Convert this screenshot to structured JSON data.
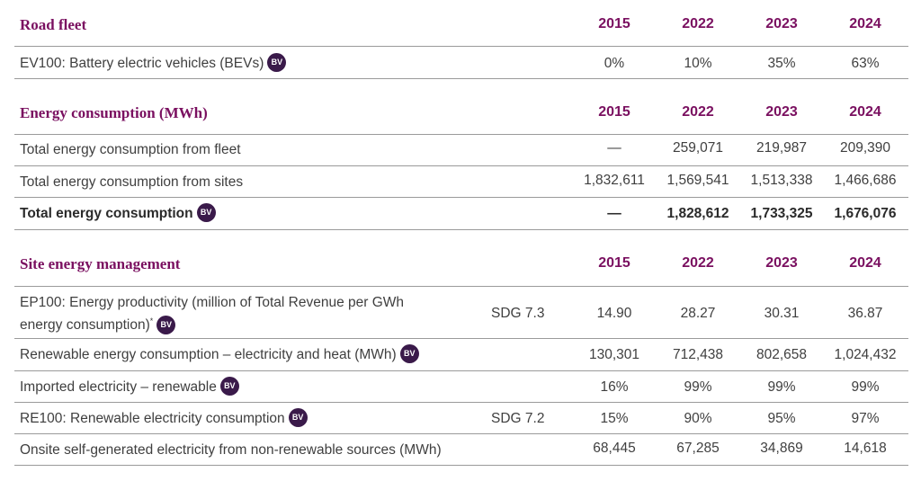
{
  "years": [
    "2015",
    "2022",
    "2023",
    "2024"
  ],
  "road_fleet": {
    "title": "Road fleet",
    "rows": [
      {
        "label": "EV100: Battery electric vehicles (BEVs)",
        "bv": "BV",
        "values": [
          "0%",
          "10%",
          "35%",
          "63%"
        ]
      }
    ]
  },
  "energy": {
    "title": "Energy consumption (MWh)",
    "rows": [
      {
        "label": "Total energy consumption from fleet",
        "values": [
          "—",
          "259,071",
          "219,987",
          "209,390"
        ]
      },
      {
        "label": "Total energy consumption from sites",
        "values": [
          "1,832,611",
          "1,569,541",
          "1,513,338",
          "1,466,686"
        ]
      },
      {
        "label": "Total energy consumption",
        "bv": "BV",
        "values": [
          "—",
          "1,828,612",
          "1,733,325",
          "1,676,076"
        ]
      }
    ]
  },
  "site": {
    "title": "Site energy management",
    "rows": [
      {
        "label_line1": "EP100: Energy productivity (million of Total Revenue per GWh",
        "label_line2": "energy consumption)",
        "sup": "*",
        "bv": "BV",
        "sdg": "SDG 7.3",
        "values": [
          "14.90",
          "28.27",
          "30.31",
          "36.87"
        ]
      },
      {
        "label": "Renewable energy consumption – electricity and heat (MWh)",
        "bv": "BV",
        "values": [
          "130,301",
          "712,438",
          "802,658",
          "1,024,432"
        ]
      },
      {
        "label": "Imported electricity – renewable",
        "bv": "BV",
        "values": [
          "16%",
          "99%",
          "99%",
          "99%"
        ]
      },
      {
        "label": "RE100: Renewable electricity consumption",
        "bv": "BV",
        "sdg": "SDG 7.2",
        "values": [
          "15%",
          "90%",
          "95%",
          "97%"
        ]
      },
      {
        "label": "Onsite self-generated electricity from non-renewable sources (MWh)",
        "values": [
          "68,445",
          "67,285",
          "34,869",
          "14,618"
        ]
      }
    ]
  }
}
